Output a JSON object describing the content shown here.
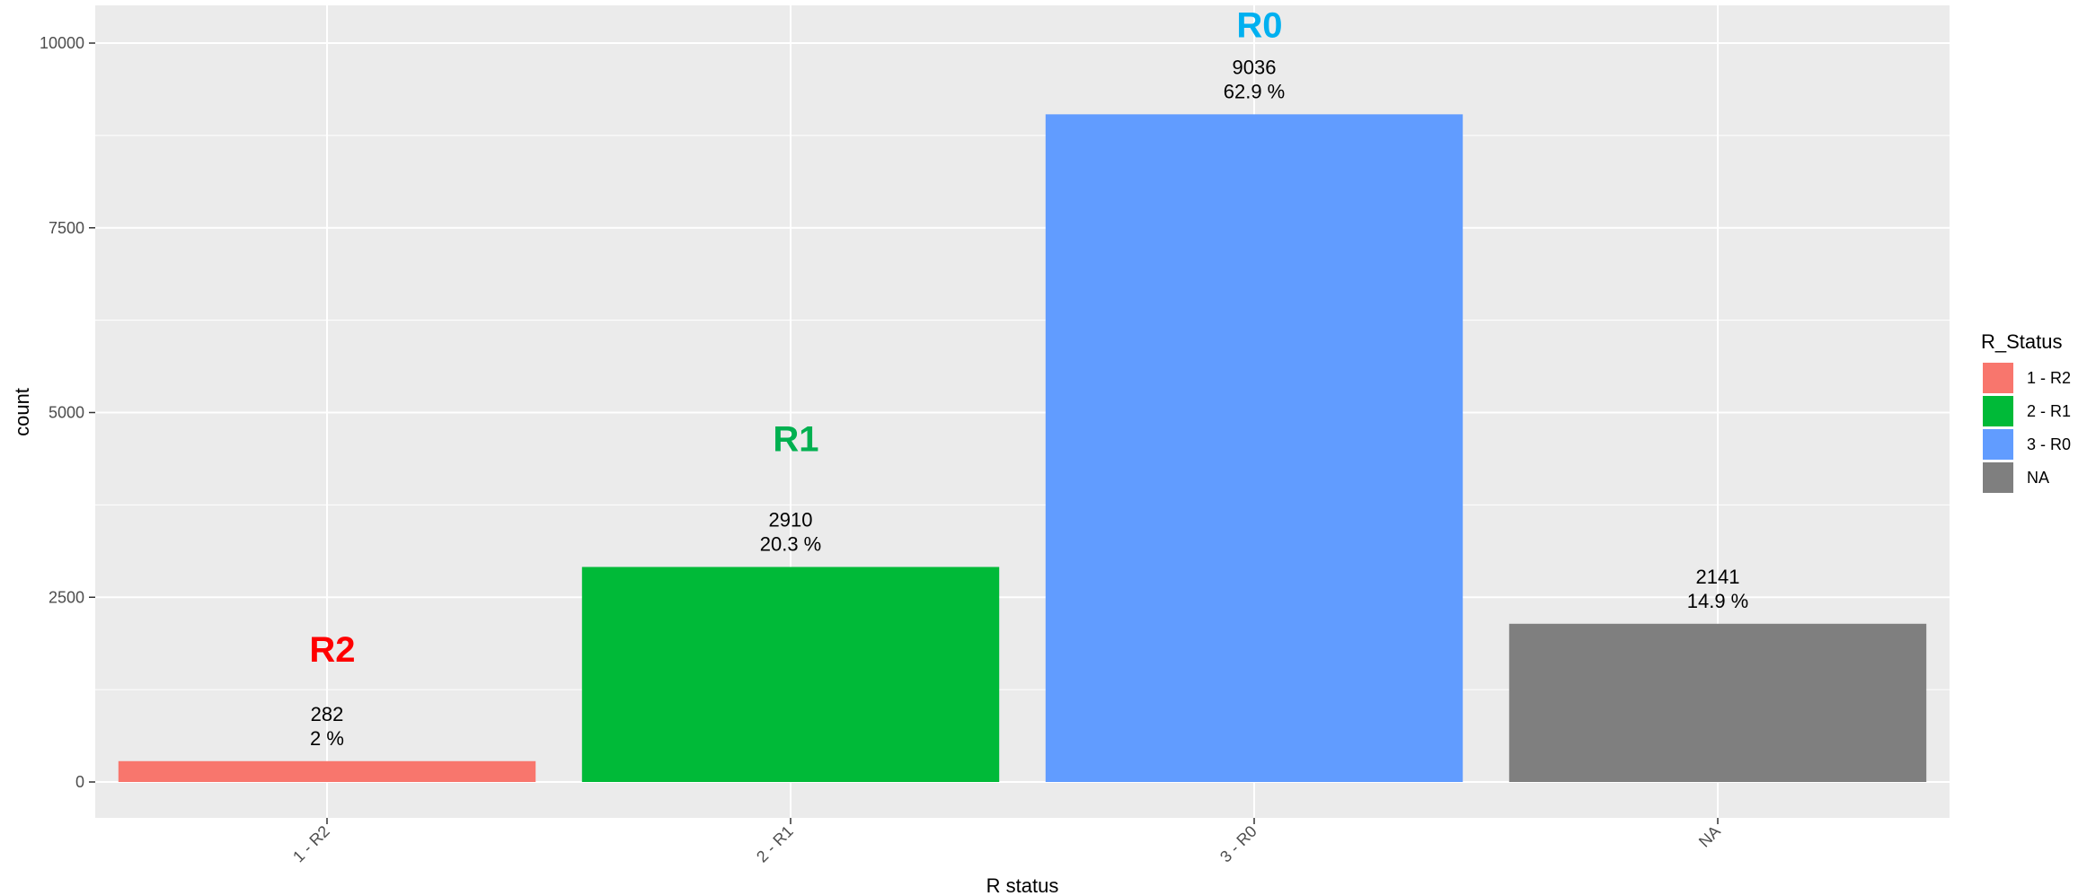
{
  "chart_data": {
    "type": "bar",
    "categories": [
      "1 - R2",
      "2 - R1",
      "3 - R0",
      "NA"
    ],
    "values": [
      282,
      2910,
      9036,
      2141
    ],
    "percent_labels": [
      "2 %",
      "20.3 %",
      "62.9 %",
      "14.9 %"
    ],
    "colors": [
      "#F8766D",
      "#00BA38",
      "#619CFF",
      "#7F7F7F"
    ],
    "xlabel": "R status",
    "ylabel": "count",
    "ylim": [
      0,
      10000
    ],
    "yticks": [
      0,
      2500,
      5000,
      7500,
      10000
    ],
    "grid": true,
    "panel_background": "#EBEBEB",
    "legend": {
      "title": "R_Status",
      "placement": "right",
      "entries": [
        "1 - R2",
        "2 - R1",
        "3 - R0",
        "NA"
      ],
      "colors": [
        "#F8766D",
        "#00BA38",
        "#619CFF",
        "#7F7F7F"
      ]
    },
    "annotations": [
      {
        "text": "R2",
        "category": "1 - R2",
        "y": 1800,
        "color": "#FF0000"
      },
      {
        "text": "R1",
        "category": "2 - R1",
        "y": 4650,
        "color": "#00B050"
      },
      {
        "text": "R0",
        "category": "3 - R0",
        "y": 10250,
        "color": "#00B0F0"
      }
    ]
  }
}
